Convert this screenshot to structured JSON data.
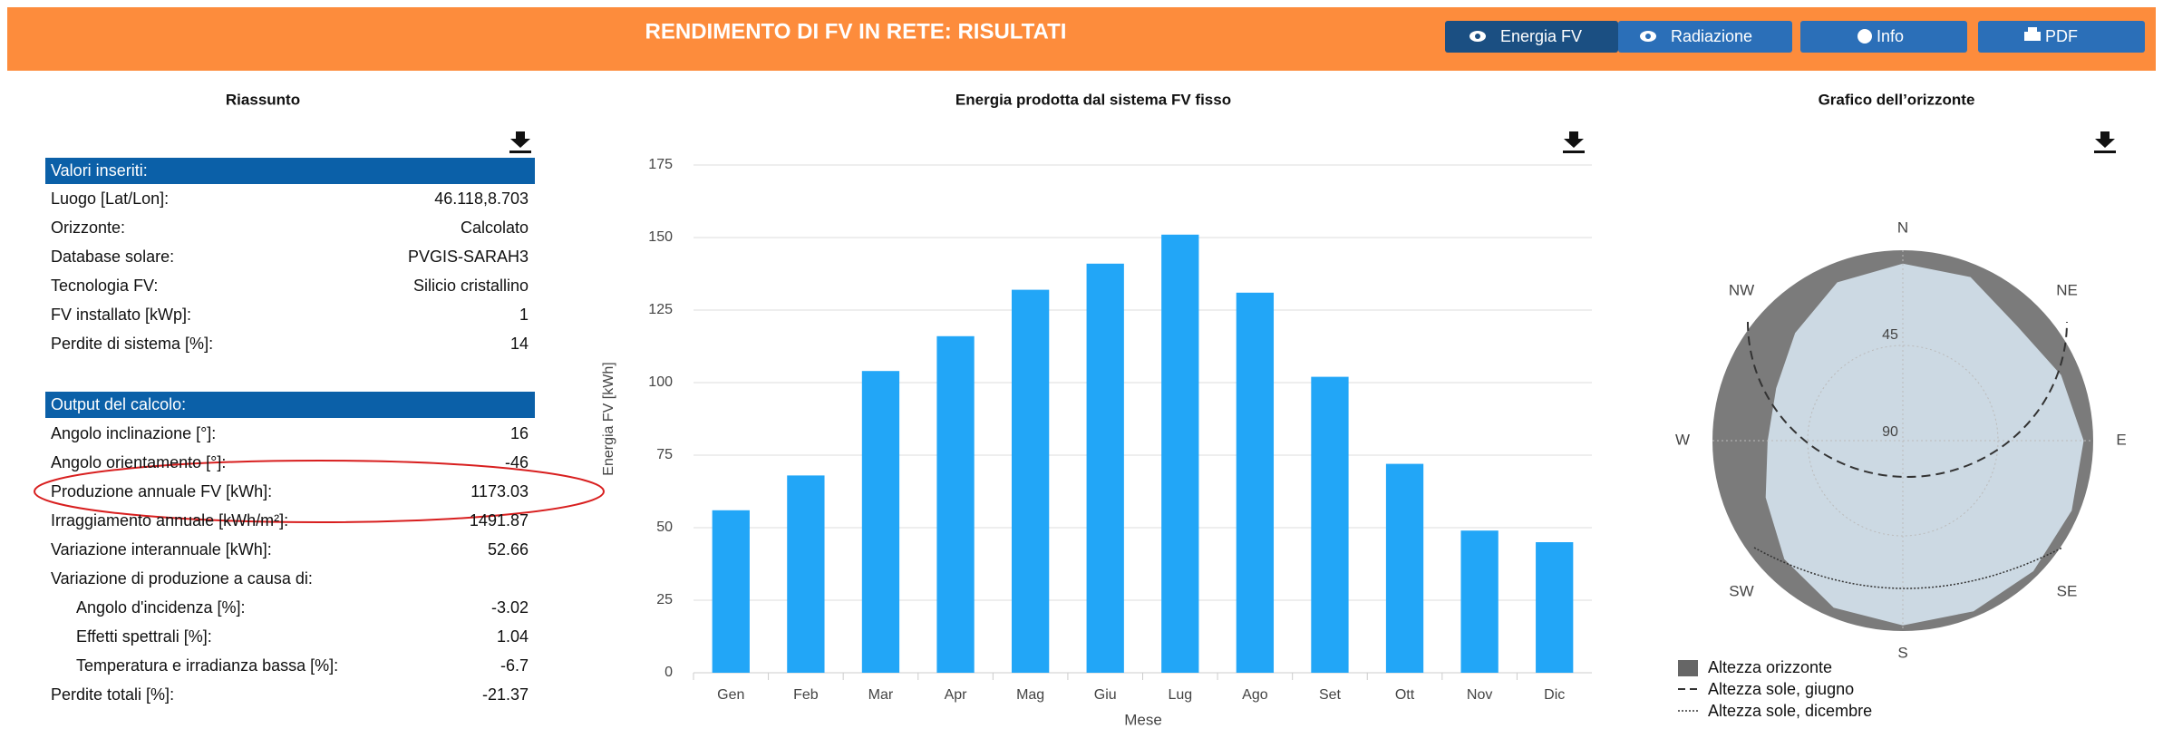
{
  "header": {
    "title": "RENDIMENTO DI FV IN RETE: RISULTATI",
    "buttons": [
      "Energia FV",
      "Radiazione",
      "Info",
      "PDF"
    ]
  },
  "summary": {
    "title": "Riassunto",
    "inputs": {
      "heading": "Valori inseriti:",
      "rows": [
        [
          "Luogo [Lat/Lon]:",
          "46.118,8.703"
        ],
        [
          "Orizzonte:",
          "Calcolato"
        ],
        [
          "Database solare:",
          "PVGIS-SARAH3"
        ],
        [
          "Tecnologia FV:",
          "Silicio cristallino"
        ],
        [
          "FV installato [kWp]:",
          "1"
        ],
        [
          "Perdite di sistema [%]:",
          "14"
        ]
      ]
    },
    "outputs": {
      "heading": "Output del calcolo:",
      "rows": [
        [
          "Angolo inclinazione [°]:",
          "16"
        ],
        [
          "Angolo orientamento [°]:",
          "-46"
        ],
        [
          "Produzione annuale FV [kWh]:",
          "1173.03"
        ],
        [
          "Irraggiamento annuale [kWh/m²]:",
          "1491.87"
        ],
        [
          "Variazione interannuale [kWh]:",
          "52.66"
        ]
      ],
      "breakdown": {
        "label": "Variazione di produzione a causa di:",
        "rows": [
          [
            "Angolo d'incidenza [%]:",
            "-3.02"
          ],
          [
            "Effetti spettrali [%]:",
            "1.04"
          ],
          [
            "Temperatura e irradianza bassa [%]:",
            "-6.7"
          ]
        ]
      },
      "total": [
        "Perdite totali [%]:",
        "-21.37"
      ]
    }
  },
  "chart_data": {
    "type": "bar",
    "title": "Energia prodotta dal sistema FV fisso",
    "xlabel": "Mese",
    "ylabel": "Energia FV [kWh]",
    "categories": [
      "Gen",
      "Feb",
      "Mar",
      "Apr",
      "Mag",
      "Giu",
      "Lug",
      "Ago",
      "Set",
      "Ott",
      "Nov",
      "Dic"
    ],
    "values": [
      56,
      68,
      104,
      116,
      132,
      141,
      151,
      131,
      102,
      72,
      49,
      45
    ],
    "color": "#22a6f7",
    "ylim": [
      0,
      175
    ],
    "yticks": [
      0,
      25,
      50,
      75,
      100,
      125,
      150,
      175
    ],
    "grid": true
  },
  "horizon": {
    "title": "Grafico dell’orizzonte",
    "directions": [
      "N",
      "NE",
      "E",
      "SE",
      "S",
      "SW",
      "W",
      "NW"
    ],
    "rings": [
      "45",
      "90"
    ],
    "legend": [
      "Altezza orizzonte",
      "Altezza sole, giugno",
      "Altezza sole, dicembre"
    ]
  }
}
